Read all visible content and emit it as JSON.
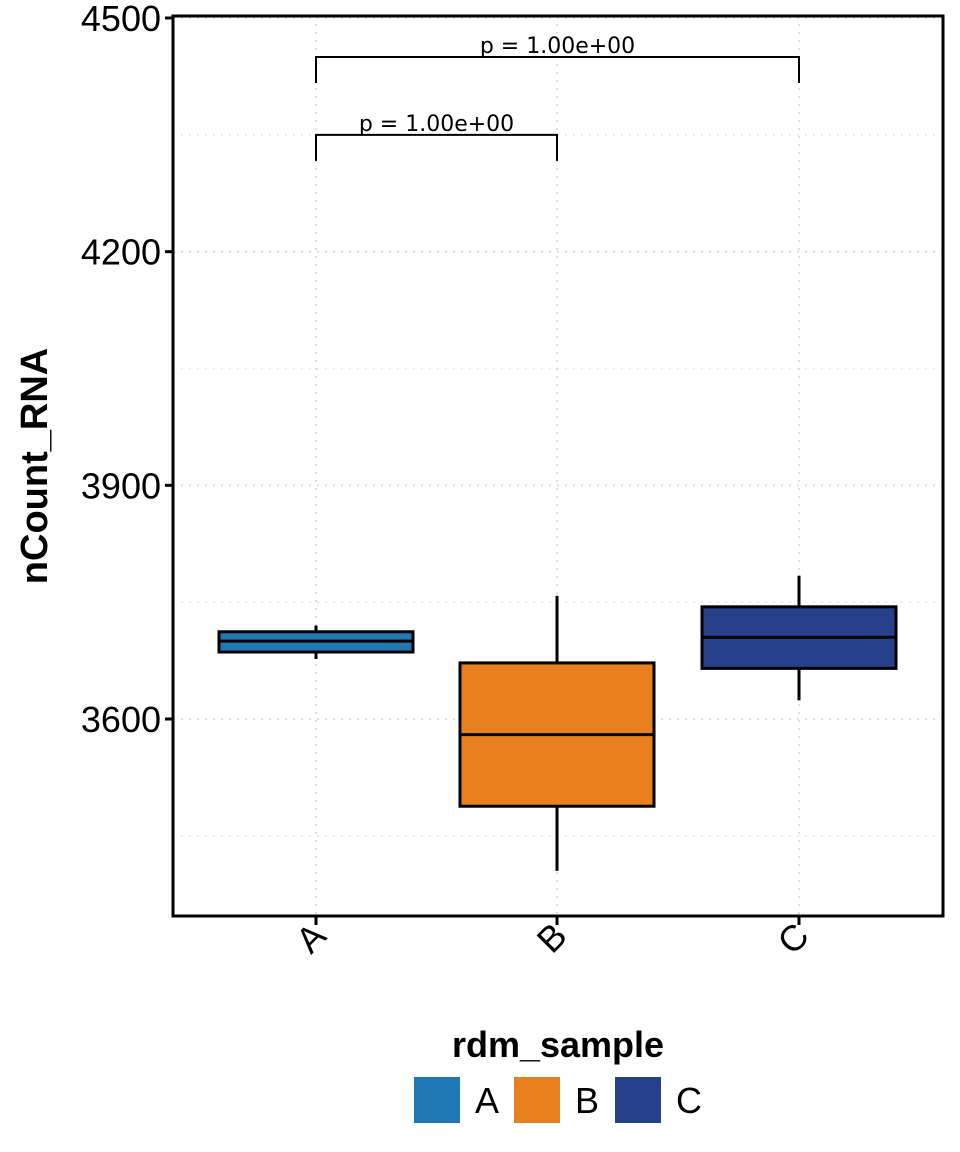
{
  "chart_data": {
    "type": "box",
    "title": "",
    "xlabel": "",
    "ylabel": "nCount_RNA",
    "ylim": [
      3350,
      4500
    ],
    "yticks": [
      3600,
      3900,
      4200,
      4500
    ],
    "grid": true,
    "categories": [
      "A",
      "B",
      "C"
    ],
    "boxes": [
      {
        "name": "A",
        "min": 3677,
        "q1": 3686,
        "median": 3700,
        "q3": 3712,
        "max": 3720,
        "color": "#1f78b4"
      },
      {
        "name": "B",
        "min": 3405,
        "q1": 3488,
        "median": 3580,
        "q3": 3672,
        "max": 3758,
        "color": "#e8801f"
      },
      {
        "name": "C",
        "min": 3624,
        "q1": 3665,
        "median": 3705,
        "q3": 3744,
        "max": 3784,
        "color": "#27408b"
      }
    ],
    "comparisons": [
      {
        "from": "A",
        "to": "B",
        "y": 4350,
        "label": "p = 1.00e+00"
      },
      {
        "from": "A",
        "to": "C",
        "y": 4450,
        "label": "p = 1.00e+00"
      }
    ],
    "legend": {
      "title": "rdm_sample",
      "position": "bottom",
      "items": [
        {
          "label": "A",
          "color": "#1f78b4"
        },
        {
          "label": "B",
          "color": "#e8801f"
        },
        {
          "label": "C",
          "color": "#27408b"
        }
      ]
    }
  }
}
